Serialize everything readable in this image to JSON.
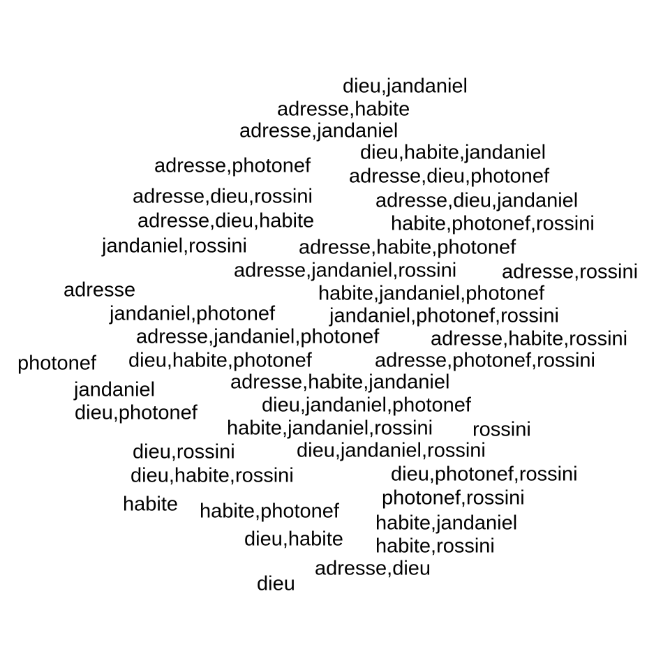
{
  "text_color": "#000000",
  "background_color": "#ffffff",
  "words": [
    "dieu,jandaniel",
    "adresse,habite",
    "adresse,jandaniel",
    "dieu,habite,jandaniel",
    "adresse,photonef",
    "adresse,dieu,photonef",
    "adresse,dieu,rossini",
    "adresse,dieu,jandaniel",
    "adresse,dieu,habite",
    "habite,photonef,rossini",
    "jandaniel,rossini",
    "adresse,habite,photonef",
    "adresse,jandaniel,rossini",
    "adresse,rossini",
    "adresse",
    "habite,jandaniel,photonef",
    "jandaniel,photonef",
    "jandaniel,photonef,rossini",
    "adresse,jandaniel,photonef",
    "adresse,habite,rossini",
    "photonef",
    "dieu,habite,photonef",
    "adresse,photonef,rossini",
    "adresse,habite,jandaniel",
    "jandaniel",
    "dieu,jandaniel,photonef",
    "dieu,photonef",
    "habite,jandaniel,rossini",
    "rossini",
    "dieu,rossini",
    "dieu,jandaniel,rossini",
    "dieu,habite,rossini",
    "dieu,photonef,rossini",
    "photonef,rossini",
    "habite",
    "habite,photonef",
    "habite,jandaniel",
    "dieu,habite",
    "habite,rossini",
    "adresse,dieu",
    "dieu"
  ]
}
